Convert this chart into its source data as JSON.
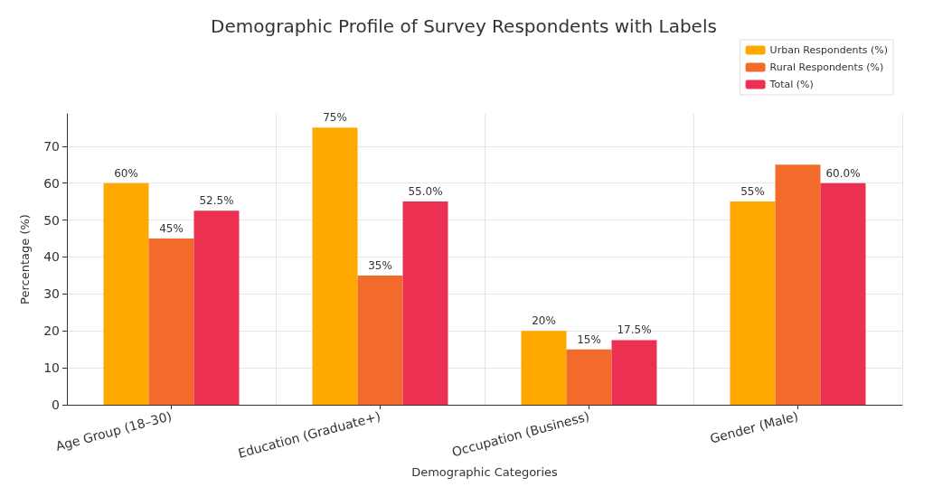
{
  "chart_data": {
    "type": "bar",
    "title": "Demographic Profile of Survey Respondents with Labels",
    "xlabel": "Demographic Categories",
    "ylabel": "Percentage (%)",
    "categories": [
      "Age Group (18–30)",
      "Education (Graduate+)",
      "Occupation (Business)",
      "Gender (Male)"
    ],
    "series": [
      {
        "name": "Urban Respondents (%)",
        "color": "#ffa800",
        "values": [
          60,
          75,
          20,
          55
        ],
        "value_labels": [
          "60%",
          "75%",
          "20%",
          "55%"
        ]
      },
      {
        "name": "Rural Respondents (%)",
        "color": "#f26b2a",
        "values": [
          45,
          35,
          15,
          65
        ],
        "value_labels": [
          "45%",
          "35%",
          "15%",
          null
        ]
      },
      {
        "name": "Total (%)",
        "color": "#eb3052",
        "values": [
          52.5,
          55,
          17.5,
          60
        ],
        "value_labels": [
          "52.5%",
          "55.0%",
          "17.5%",
          "60.0%"
        ]
      }
    ],
    "ylim": [
      0,
      78.75
    ],
    "yticks": [
      0,
      10,
      20,
      30,
      40,
      50,
      60,
      70
    ],
    "grid": true,
    "legend": "top right"
  }
}
